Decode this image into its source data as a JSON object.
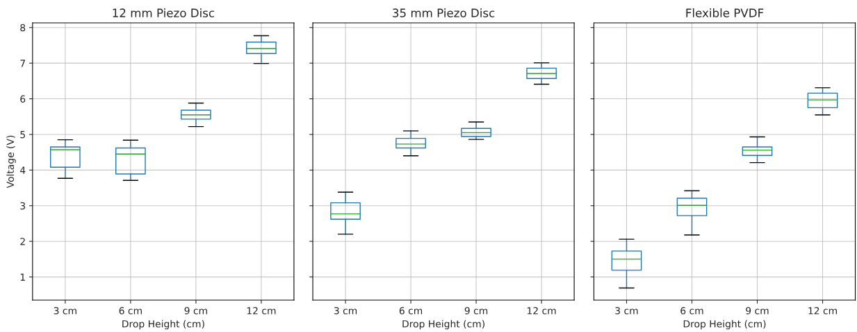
{
  "chart_data": [
    {
      "type": "box",
      "title": "12 mm Piezo Disc",
      "xlabel": "Drop Height (cm)",
      "ylabel": "Voltage (V)",
      "categories": [
        "3 cm",
        "6 cm",
        "9 cm",
        "12 cm"
      ],
      "ylim": [
        0.35,
        8.13
      ],
      "yticks": [
        1,
        2,
        3,
        4,
        5,
        6,
        7,
        8
      ],
      "grid": true,
      "series": [
        {
          "color": "#1f77b4",
          "boxes": [
            {
              "low": 3.77,
              "q1": 4.08,
              "median": 4.57,
              "q3": 4.65,
              "high": 4.85
            },
            {
              "low": 3.71,
              "q1": 3.89,
              "median": 4.45,
              "q3": 4.62,
              "high": 4.84
            },
            {
              "low": 5.22,
              "q1": 5.43,
              "median": 5.55,
              "q3": 5.68,
              "high": 5.88
            },
            {
              "low": 6.99,
              "q1": 7.27,
              "median": 7.41,
              "q3": 7.59,
              "high": 7.77
            }
          ]
        }
      ]
    },
    {
      "type": "box",
      "title": "35 mm Piezo Disc",
      "xlabel": "Drop Height (cm)",
      "categories": [
        "3 cm",
        "6 cm",
        "9 cm",
        "12 cm"
      ],
      "ylim": [
        0.35,
        8.13
      ],
      "yticks": [
        1,
        2,
        3,
        4,
        5,
        6,
        7,
        8
      ],
      "grid": true,
      "tick_labels": "x",
      "series": [
        {
          "color": "#1f77b4",
          "boxes": [
            {
              "low": 2.2,
              "q1": 2.62,
              "median": 2.77,
              "q3": 3.08,
              "high": 3.38
            },
            {
              "low": 4.4,
              "q1": 4.62,
              "median": 4.73,
              "q3": 4.89,
              "high": 5.1
            },
            {
              "low": 4.86,
              "q1": 4.94,
              "median": 5.05,
              "q3": 5.17,
              "high": 5.35
            },
            {
              "low": 6.41,
              "q1": 6.57,
              "median": 6.71,
              "q3": 6.86,
              "high": 7.01
            }
          ]
        }
      ]
    },
    {
      "type": "box",
      "title": "Flexible PVDF",
      "xlabel": "Drop Height (cm)",
      "categories": [
        "3 cm",
        "6 cm",
        "9 cm",
        "12 cm"
      ],
      "ylim": [
        0.35,
        8.13
      ],
      "yticks": [
        1,
        2,
        3,
        4,
        5,
        6,
        7,
        8
      ],
      "grid": true,
      "tick_labels": "x",
      "series": [
        {
          "color": "#1f77b4",
          "boxes": [
            {
              "low": 0.69,
              "q1": 1.19,
              "median": 1.5,
              "q3": 1.73,
              "high": 2.06
            },
            {
              "low": 2.18,
              "q1": 2.72,
              "median": 3.01,
              "q3": 3.21,
              "high": 3.42
            },
            {
              "low": 4.21,
              "q1": 4.41,
              "median": 4.56,
              "q3": 4.65,
              "high": 4.93
            },
            {
              "low": 5.55,
              "q1": 5.75,
              "median": 5.97,
              "q3": 6.16,
              "high": 6.31
            }
          ]
        }
      ]
    }
  ]
}
